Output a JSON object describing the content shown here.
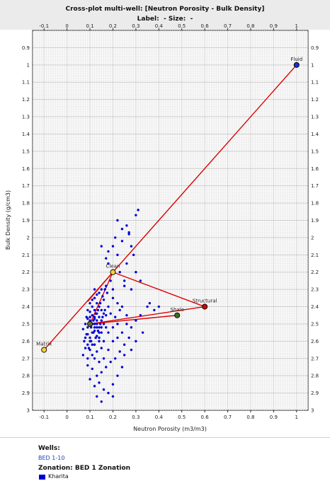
{
  "header": {
    "title": "Cross-plot multi-well: [Neutron Porosity - Bulk Density]",
    "subtitle": "Label:  - Size:  -"
  },
  "chart_data": {
    "type": "scatter",
    "xlabel": "Neutron Porosity (m3/m3)",
    "ylabel": "Bulk Density (g/cm3)",
    "xlim": [
      -0.15,
      1.05
    ],
    "ylim": [
      0.8,
      3.0
    ],
    "y_inverted": true,
    "grid": true,
    "x_ticks": [
      "-0.1",
      "0",
      "0.1",
      "0.2",
      "0.3",
      "0.4",
      "0.5",
      "0.6",
      "0.7",
      "0.8",
      "0.9",
      "1"
    ],
    "y_ticks": [
      "0.9",
      "1",
      "1.1",
      "1.2",
      "1.3",
      "1.4",
      "1.5",
      "1.6",
      "1.7",
      "1.8",
      "1.9",
      "2",
      "2.1",
      "2.2",
      "2.3",
      "2.4",
      "2.5",
      "2.6",
      "2.7",
      "2.8",
      "2.9",
      "3"
    ],
    "series": [
      {
        "name": "Kharita",
        "color": "#0000d4",
        "points": [
          [
            0.14,
            2.32
          ],
          [
            0.13,
            2.38
          ],
          [
            0.12,
            2.42
          ],
          [
            0.11,
            2.45
          ],
          [
            0.1,
            2.48
          ],
          [
            0.12,
            2.5
          ],
          [
            0.09,
            2.52
          ],
          [
            0.11,
            2.55
          ],
          [
            0.13,
            2.57
          ],
          [
            0.1,
            2.6
          ],
          [
            0.12,
            2.62
          ],
          [
            0.14,
            2.6
          ],
          [
            0.08,
            2.58
          ],
          [
            0.09,
            2.62
          ],
          [
            0.1,
            2.65
          ],
          [
            0.15,
            2.55
          ],
          [
            0.16,
            2.5
          ],
          [
            0.17,
            2.45
          ],
          [
            0.15,
            2.42
          ],
          [
            0.18,
            2.4
          ],
          [
            0.16,
            2.36
          ],
          [
            0.15,
            2.3
          ],
          [
            0.17,
            2.28
          ],
          [
            0.19,
            2.25
          ],
          [
            0.2,
            2.3
          ],
          [
            0.13,
            2.48
          ],
          [
            0.14,
            2.52
          ],
          [
            0.12,
            2.46
          ],
          [
            0.11,
            2.4
          ],
          [
            0.13,
            2.44
          ],
          [
            0.1,
            2.43
          ],
          [
            0.09,
            2.47
          ],
          [
            0.08,
            2.5
          ],
          [
            0.07,
            2.53
          ],
          [
            0.09,
            2.56
          ],
          [
            0.08,
            2.64
          ],
          [
            0.07,
            2.68
          ],
          [
            0.09,
            2.7
          ],
          [
            0.11,
            2.68
          ],
          [
            0.13,
            2.66
          ],
          [
            0.15,
            2.64
          ],
          [
            0.16,
            2.6
          ],
          [
            0.18,
            2.55
          ],
          [
            0.2,
            2.52
          ],
          [
            0.22,
            2.5
          ],
          [
            0.21,
            2.46
          ],
          [
            0.23,
            2.42
          ],
          [
            0.19,
            2.44
          ],
          [
            0.17,
            2.52
          ],
          [
            0.15,
            2.48
          ],
          [
            0.12,
            2.35
          ],
          [
            0.13,
            2.33
          ],
          [
            0.14,
            2.4
          ],
          [
            0.16,
            2.44
          ],
          [
            0.12,
            2.54
          ],
          [
            0.14,
            2.58
          ],
          [
            0.1,
            2.58
          ],
          [
            0.11,
            2.62
          ],
          [
            0.12,
            2.7
          ],
          [
            0.14,
            2.72
          ],
          [
            0.16,
            2.7
          ],
          [
            0.18,
            2.65
          ],
          [
            0.2,
            2.6
          ],
          [
            0.22,
            2.58
          ],
          [
            0.24,
            2.55
          ],
          [
            0.26,
            2.5
          ],
          [
            0.28,
            2.52
          ],
          [
            0.3,
            2.48
          ],
          [
            0.32,
            2.45
          ],
          [
            0.35,
            2.4
          ],
          [
            0.38,
            2.42
          ],
          [
            0.36,
            2.38
          ],
          [
            0.4,
            2.4
          ],
          [
            0.33,
            2.55
          ],
          [
            0.3,
            2.6
          ],
          [
            0.28,
            2.65
          ],
          [
            0.27,
            2.58
          ],
          [
            0.25,
            2.62
          ],
          [
            0.23,
            2.66
          ],
          [
            0.21,
            2.7
          ],
          [
            0.19,
            2.72
          ],
          [
            0.17,
            2.75
          ],
          [
            0.15,
            2.78
          ],
          [
            0.13,
            2.8
          ],
          [
            0.11,
            2.76
          ],
          [
            0.09,
            2.74
          ],
          [
            0.1,
            2.82
          ],
          [
            0.12,
            2.86
          ],
          [
            0.14,
            2.84
          ],
          [
            0.16,
            2.88
          ],
          [
            0.18,
            2.9
          ],
          [
            0.2,
            2.85
          ],
          [
            0.22,
            2.8
          ],
          [
            0.24,
            2.75
          ],
          [
            0.13,
            2.92
          ],
          [
            0.15,
            2.95
          ],
          [
            0.2,
            2.92
          ],
          [
            0.25,
            2.68
          ],
          [
            0.26,
            2.45
          ],
          [
            0.24,
            2.4
          ],
          [
            0.22,
            2.38
          ],
          [
            0.2,
            2.35
          ],
          [
            0.25,
            2.28
          ],
          [
            0.23,
            2.2
          ],
          [
            0.26,
            2.15
          ],
          [
            0.22,
            2.1
          ],
          [
            0.2,
            2.05
          ],
          [
            0.18,
            2.08
          ],
          [
            0.24,
            2.02
          ],
          [
            0.28,
            2.05
          ],
          [
            0.27,
            1.98
          ],
          [
            0.3,
            2.2
          ],
          [
            0.32,
            2.25
          ],
          [
            0.28,
            2.3
          ],
          [
            0.27,
            1.97
          ],
          [
            0.3,
            1.87
          ],
          [
            0.31,
            1.84
          ],
          [
            0.29,
            2.1
          ],
          [
            0.24,
            1.95
          ],
          [
            0.26,
            1.93
          ],
          [
            0.22,
            1.9
          ],
          [
            0.25,
            2.25
          ],
          [
            0.21,
            2.0
          ],
          [
            0.17,
            2.12
          ],
          [
            0.15,
            2.05
          ],
          [
            0.18,
            2.15
          ],
          [
            0.12,
            2.3
          ],
          [
            0.11,
            2.36
          ],
          [
            0.1,
            2.38
          ],
          [
            0.09,
            2.42
          ],
          [
            0.085,
            2.46
          ],
          [
            0.095,
            2.5
          ],
          [
            0.105,
            2.52
          ],
          [
            0.115,
            2.48
          ],
          [
            0.125,
            2.44
          ],
          [
            0.135,
            2.42
          ],
          [
            0.145,
            2.38
          ],
          [
            0.155,
            2.34
          ],
          [
            0.165,
            2.3
          ],
          [
            0.175,
            2.32
          ],
          [
            0.115,
            2.55
          ],
          [
            0.125,
            2.58
          ],
          [
            0.135,
            2.54
          ],
          [
            0.145,
            2.5
          ],
          [
            0.155,
            2.46
          ],
          [
            0.165,
            2.42
          ],
          [
            0.105,
            2.6
          ],
          [
            0.095,
            2.64
          ],
          [
            0.085,
            2.56
          ],
          [
            0.075,
            2.6
          ],
          [
            0.14,
            2.46
          ],
          [
            0.13,
            2.5
          ],
          [
            0.12,
            2.52
          ],
          [
            0.11,
            2.5
          ],
          [
            0.1,
            2.46
          ],
          [
            0.1,
            2.5
          ],
          [
            0.12,
            2.47
          ],
          [
            0.13,
            2.52
          ],
          [
            0.14,
            2.55
          ],
          [
            0.15,
            2.52
          ]
        ]
      }
    ],
    "endpoints": [
      {
        "label": "Fluid",
        "x": 1.0,
        "y": 1.0,
        "color": "#1a2ed4"
      },
      {
        "label": "Clean",
        "x": 0.2,
        "y": 2.2,
        "color": "#f0d040"
      },
      {
        "label": "Matrix",
        "x": -0.1,
        "y": 2.65,
        "color": "#f0d040"
      },
      {
        "label": "Shale",
        "x": 0.48,
        "y": 2.45,
        "color": "#3d6b22"
      },
      {
        "label": "Structural",
        "x": 0.6,
        "y": 2.4,
        "color": "#d40000"
      },
      {
        "label": "",
        "x": 0.1,
        "y": 2.5,
        "color": "#6b6b22"
      }
    ],
    "lines_color": "#dd0000",
    "lines": [
      {
        "from": [
          -0.1,
          2.65
        ],
        "to": [
          1.0,
          1.0
        ]
      },
      {
        "from": [
          0.2,
          2.2
        ],
        "to": [
          0.6,
          2.4
        ]
      },
      {
        "from": [
          0.6,
          2.4
        ],
        "to": [
          0.1,
          2.5
        ]
      },
      {
        "from": [
          0.2,
          2.2
        ],
        "to": [
          0.1,
          2.5
        ]
      },
      {
        "from": [
          0.1,
          2.5
        ],
        "to": [
          0.48,
          2.45
        ]
      },
      {
        "from": [
          0.2,
          2.2
        ],
        "to": [
          0.09,
          2.37
        ]
      }
    ]
  },
  "legend": {
    "wells_heading": "Wells:",
    "wells_value": "BED 1-10",
    "zonation_heading": "Zonation: BED 1 Zonation",
    "zone_name": "Kharita",
    "zone_color": "#0000d4"
  }
}
